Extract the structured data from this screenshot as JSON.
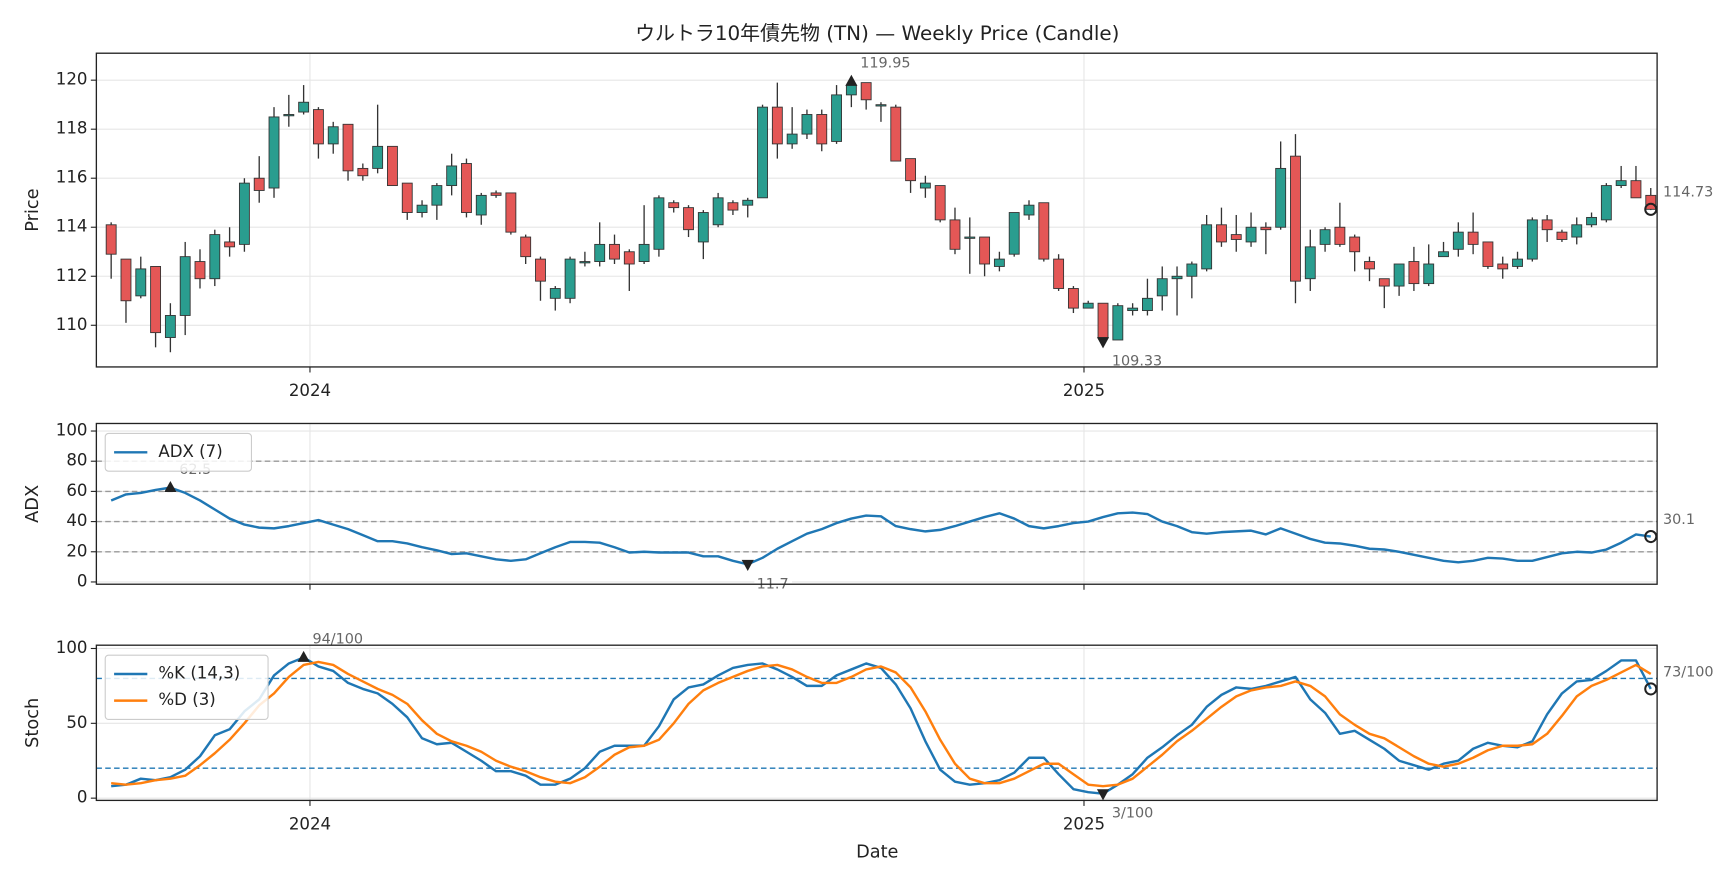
{
  "chart_data": {
    "title": "ウルトラ10年債先物 (TN) — Weekly Price (Candle)",
    "xlabel": "Date",
    "xlim": [
      "2023-09-22",
      "2025-09-29"
    ],
    "xticks": [
      {
        "value": "2024-01-01",
        "label": "2024"
      },
      {
        "value": "2025-01-01",
        "label": "2025"
      }
    ],
    "x": [
      "2023-09-29",
      "2023-10-06",
      "2023-10-13",
      "2023-10-20",
      "2023-10-27",
      "2023-11-03",
      "2023-11-10",
      "2023-11-17",
      "2023-11-24",
      "2023-12-01",
      "2023-12-08",
      "2023-12-15",
      "2023-12-22",
      "2023-12-29",
      "2024-01-05",
      "2024-01-12",
      "2024-01-19",
      "2024-01-26",
      "2024-02-02",
      "2024-02-09",
      "2024-02-16",
      "2024-02-23",
      "2024-03-01",
      "2024-03-08",
      "2024-03-15",
      "2024-03-22",
      "2024-03-29",
      "2024-04-05",
      "2024-04-12",
      "2024-04-19",
      "2024-04-26",
      "2024-05-03",
      "2024-05-10",
      "2024-05-17",
      "2024-05-24",
      "2024-05-31",
      "2024-06-07",
      "2024-06-14",
      "2024-06-21",
      "2024-06-28",
      "2024-07-05",
      "2024-07-12",
      "2024-07-19",
      "2024-07-26",
      "2024-08-02",
      "2024-08-09",
      "2024-08-16",
      "2024-08-23",
      "2024-08-30",
      "2024-09-06",
      "2024-09-13",
      "2024-09-20",
      "2024-09-27",
      "2024-10-04",
      "2024-10-11",
      "2024-10-18",
      "2024-10-25",
      "2024-11-01",
      "2024-11-08",
      "2024-11-15",
      "2024-11-22",
      "2024-11-29",
      "2024-12-06",
      "2024-12-13",
      "2024-12-20",
      "2024-12-27",
      "2025-01-03",
      "2025-01-10",
      "2025-01-17",
      "2025-01-24",
      "2025-01-31",
      "2025-02-07",
      "2025-02-14",
      "2025-02-21",
      "2025-02-28",
      "2025-03-07",
      "2025-03-14",
      "2025-03-21",
      "2025-03-28",
      "2025-04-04",
      "2025-04-11",
      "2025-04-18",
      "2025-04-25",
      "2025-05-02",
      "2025-05-09",
      "2025-05-16",
      "2025-05-23",
      "2025-05-30",
      "2025-06-06",
      "2025-06-13",
      "2025-06-20",
      "2025-06-27",
      "2025-07-04",
      "2025-07-11",
      "2025-07-18",
      "2025-07-25",
      "2025-08-01",
      "2025-08-08",
      "2025-08-15",
      "2025-08-22",
      "2025-08-29",
      "2025-09-05",
      "2025-09-12",
      "2025-09-19",
      "2025-09-26"
    ],
    "panels": [
      {
        "type": "candlestick",
        "ylabel": "Price",
        "ylim": [
          108.3,
          121.1
        ],
        "yticks": [
          110,
          112,
          114,
          116,
          118,
          120
        ],
        "grid": true,
        "show_xtick_labels": true,
        "up_color": "#2a9d8f",
        "down_color": "#e45756",
        "edge_color": "#333333",
        "open": [
          114.1,
          112.7,
          111.2,
          112.4,
          109.5,
          110.4,
          112.6,
          111.9,
          113.4,
          113.3,
          116.0,
          115.6,
          118.6,
          118.7,
          118.8,
          117.4,
          118.2,
          116.4,
          116.4,
          117.3,
          115.8,
          114.6,
          114.9,
          115.7,
          116.6,
          114.5,
          115.4,
          115.4,
          113.6,
          112.7,
          111.1,
          111.1,
          112.6,
          112.6,
          113.3,
          113.0,
          112.6,
          113.1,
          115.0,
          114.8,
          113.4,
          114.1,
          115.0,
          114.9,
          115.2,
          118.9,
          117.4,
          117.8,
          118.6,
          117.5,
          119.4,
          119.9,
          119.0,
          118.9,
          116.8,
          115.6,
          115.7,
          114.3,
          113.6,
          113.6,
          112.4,
          112.9,
          114.5,
          115.0,
          112.7,
          111.5,
          110.7,
          110.9,
          109.4,
          110.6,
          110.6,
          111.2,
          111.9,
          112.0,
          112.3,
          114.1,
          113.7,
          113.4,
          114.0,
          114.0,
          116.9,
          111.9,
          113.3,
          114.0,
          113.6,
          112.6,
          111.9,
          111.6,
          112.6,
          111.7,
          112.8,
          113.1,
          113.8,
          113.4,
          112.5,
          112.4,
          112.7,
          114.3,
          113.8,
          113.6,
          114.1,
          114.3,
          115.7,
          115.9,
          115.3
        ],
        "high": [
          114.2,
          112.7,
          112.8,
          112.4,
          110.9,
          113.4,
          113.1,
          113.9,
          114.0,
          116.0,
          116.9,
          118.9,
          119.4,
          119.8,
          118.9,
          118.3,
          118.2,
          116.6,
          119.0,
          117.3,
          115.8,
          115.1,
          115.8,
          117.0,
          116.8,
          115.4,
          115.5,
          115.4,
          113.7,
          112.8,
          111.6,
          112.8,
          113.0,
          114.2,
          113.7,
          113.1,
          114.9,
          115.3,
          115.1,
          114.9,
          114.7,
          115.4,
          115.1,
          115.2,
          119.0,
          119.9,
          118.9,
          118.8,
          118.8,
          119.8,
          119.95,
          119.9,
          119.1,
          119.0,
          116.8,
          116.1,
          115.7,
          114.8,
          114.4,
          113.6,
          113.0,
          114.6,
          115.1,
          115.0,
          112.9,
          111.6,
          111.0,
          110.9,
          110.9,
          110.9,
          111.9,
          112.4,
          112.4,
          112.6,
          114.5,
          114.8,
          114.5,
          114.6,
          114.2,
          117.5,
          117.8,
          113.9,
          114.0,
          115.0,
          113.7,
          112.8,
          111.9,
          112.5,
          113.2,
          113.3,
          113.4,
          114.2,
          114.6,
          113.4,
          112.8,
          113.0,
          114.4,
          114.5,
          113.9,
          114.4,
          114.6,
          115.8,
          116.5,
          116.5,
          115.6
        ],
        "low": [
          111.9,
          110.1,
          111.1,
          109.1,
          108.9,
          109.6,
          111.5,
          111.6,
          112.8,
          113.0,
          115.0,
          115.2,
          118.1,
          118.6,
          116.8,
          117.0,
          115.9,
          115.9,
          116.2,
          115.7,
          114.3,
          114.4,
          114.3,
          115.3,
          114.4,
          114.1,
          115.2,
          113.7,
          112.5,
          111.0,
          110.6,
          110.9,
          112.4,
          112.4,
          112.5,
          111.4,
          112.5,
          112.8,
          114.6,
          113.6,
          112.7,
          114.0,
          114.5,
          114.4,
          115.2,
          116.8,
          117.2,
          117.6,
          117.1,
          117.4,
          118.9,
          118.8,
          118.3,
          116.7,
          115.4,
          115.2,
          114.2,
          112.9,
          112.1,
          112.0,
          112.2,
          112.8,
          114.3,
          112.6,
          111.4,
          110.5,
          110.7,
          109.33,
          109.4,
          110.4,
          110.4,
          110.6,
          110.4,
          111.1,
          112.2,
          113.2,
          113.0,
          113.2,
          112.9,
          113.9,
          110.9,
          111.4,
          113.0,
          113.2,
          112.2,
          111.8,
          110.7,
          111.2,
          111.4,
          111.6,
          112.8,
          112.8,
          112.9,
          112.3,
          111.9,
          112.3,
          112.6,
          113.4,
          113.4,
          113.3,
          114.0,
          114.2,
          115.6,
          115.2,
          114.7
        ],
        "close": [
          112.9,
          111.0,
          112.3,
          109.7,
          110.4,
          112.8,
          111.9,
          113.7,
          113.2,
          115.8,
          115.5,
          118.5,
          118.6,
          119.1,
          117.4,
          118.1,
          116.3,
          116.1,
          117.3,
          115.7,
          114.6,
          114.9,
          115.7,
          116.5,
          114.6,
          115.3,
          115.3,
          113.8,
          112.8,
          111.8,
          111.5,
          112.7,
          112.6,
          113.3,
          112.7,
          112.5,
          113.3,
          115.2,
          114.8,
          113.9,
          114.6,
          115.2,
          114.7,
          115.1,
          118.9,
          117.4,
          117.8,
          118.6,
          117.4,
          119.4,
          119.8,
          119.2,
          119.0,
          116.7,
          115.9,
          115.8,
          114.3,
          113.1,
          113.6,
          112.5,
          112.7,
          114.6,
          114.9,
          112.7,
          111.5,
          110.7,
          110.9,
          109.5,
          110.8,
          110.7,
          111.1,
          111.9,
          112.0,
          112.5,
          114.1,
          113.4,
          113.5,
          114.0,
          113.9,
          116.4,
          111.8,
          113.2,
          113.9,
          113.3,
          113.0,
          112.3,
          111.6,
          112.5,
          111.7,
          112.5,
          113.0,
          113.8,
          113.3,
          112.4,
          112.3,
          112.7,
          114.3,
          113.9,
          113.5,
          114.1,
          114.4,
          115.7,
          115.9,
          115.2,
          114.73
        ],
        "annotations": [
          {
            "text": "119.95",
            "x": "2024-09-13",
            "y": 119.95,
            "marker": "up"
          },
          {
            "text": "109.33",
            "x": "2025-01-10",
            "y": 109.33,
            "marker": "down"
          },
          {
            "text": "114.73",
            "x": "2025-09-26",
            "y": 114.73,
            "marker": "circle"
          }
        ]
      },
      {
        "type": "line",
        "ylabel": "ADX",
        "ylim": [
          -1.5,
          105
        ],
        "yticks": [
          0,
          20,
          40,
          60,
          80,
          100
        ],
        "grid": true,
        "show_xtick_labels": false,
        "hlines": [
          20,
          40,
          60,
          80
        ],
        "hline_color": "#999999",
        "legend": "upper left",
        "series": [
          {
            "name": "ADX (7)",
            "color": "#1f77b4",
            "values": [
              54,
              58,
              59,
              61,
              62.5,
              59,
              54,
              48,
              42,
              38,
              36,
              35.5,
              37,
              39,
              41,
              38,
              35,
              31,
              27,
              27,
              25.5,
              23,
              21,
              18.5,
              19,
              17,
              15,
              14,
              15,
              19,
              23,
              26.5,
              26.5,
              26,
              23,
              19.5,
              20,
              19.5,
              19.5,
              19.5,
              17,
              17,
              14,
              11.7,
              16,
              22,
              27,
              32,
              35,
              39,
              42,
              44,
              43.5,
              37,
              35,
              33.5,
              34.5,
              37,
              40,
              43,
              45.5,
              42,
              37,
              35.5,
              37,
              39,
              40,
              43,
              45.5,
              46,
              45,
              40,
              37,
              33,
              32,
              33,
              33.5,
              34,
              31.5,
              35.5,
              32,
              28.5,
              26,
              25.5,
              24,
              22,
              21.5,
              20,
              18,
              16,
              14,
              13,
              14,
              16,
              15.5,
              14,
              14,
              16.5,
              19,
              20,
              19.5,
              21.5,
              26,
              31.5,
              30.1
            ]
          }
        ],
        "annotations": [
          {
            "text": "62.5",
            "x": "2023-10-27",
            "y": 62.5,
            "marker": "up"
          },
          {
            "text": "11.7",
            "x": "2024-07-26",
            "y": 11.7,
            "marker": "down"
          },
          {
            "text": "30.1",
            "x": "2025-09-26",
            "y": 30.1,
            "marker": "circle"
          }
        ]
      },
      {
        "type": "line",
        "ylabel": "Stoch",
        "ylim": [
          -1.5,
          102.2
        ],
        "yticks": [
          0,
          50,
          100
        ],
        "grid": true,
        "show_xtick_labels": true,
        "hlines": [
          20,
          80
        ],
        "hline_color": "#1f77b4",
        "legend": "upper left",
        "series": [
          {
            "name": "%K (14,3)",
            "color": "#1f77b4",
            "values": [
              8,
              9,
              13,
              12,
              14,
              19,
              28,
              42,
              46,
              58,
              66,
              82,
              90,
              94,
              88,
              85,
              77,
              73,
              70,
              63,
              54,
              40,
              36,
              37,
              31,
              25,
              18,
              18,
              15,
              9,
              9,
              13,
              20,
              31,
              35,
              35,
              35,
              48,
              66,
              74,
              76,
              82,
              87,
              89,
              90,
              86,
              81,
              75,
              75,
              82,
              86,
              90,
              87,
              76,
              60,
              38,
              19,
              11,
              9,
              10,
              12,
              17,
              27,
              27,
              16,
              6,
              4,
              3,
              9,
              16,
              27,
              34,
              42,
              49,
              61,
              69,
              74,
              73,
              75,
              78,
              81,
              66,
              57,
              43,
              45,
              39,
              33,
              25,
              22,
              19,
              23,
              25,
              33,
              37,
              35,
              34,
              38,
              56,
              70,
              78,
              79,
              85,
              92,
              92,
              73
            ]
          },
          {
            "name": "%D (3)",
            "color": "#ff7f0e",
            "values": [
              10,
              9,
              10,
              12,
              13,
              15,
              22,
              30,
              39,
              50,
              62,
              70,
              81,
              89,
              91,
              89,
              83,
              78,
              73,
              69,
              63,
              52,
              43,
              38,
              35,
              31,
              25,
              21,
              18,
              14,
              11,
              10,
              14,
              21,
              29,
              34,
              35,
              39,
              50,
              63,
              72,
              77,
              81,
              85,
              88,
              89,
              86,
              81,
              77,
              77,
              81,
              86,
              88,
              84,
              74,
              58,
              39,
              23,
              13,
              10,
              10,
              13,
              18,
              23,
              23,
              16,
              9,
              8,
              9,
              13,
              21,
              29,
              38,
              45,
              53,
              61,
              68,
              72,
              74,
              75,
              78,
              75,
              68,
              56,
              49,
              43,
              40,
              34,
              28,
              23,
              21,
              23,
              27,
              32,
              35,
              35,
              36,
              43,
              55,
              68,
              75,
              79,
              84,
              89,
              83
            ]
          }
        ],
        "annotations": [
          {
            "text": "94/100",
            "x": "2023-12-29",
            "y": 94,
            "marker": "up"
          },
          {
            "text": "3/100",
            "x": "2025-01-10",
            "y": 3,
            "marker": "down"
          },
          {
            "text": "73/100",
            "x": "2025-09-26",
            "y": 73,
            "marker": "circle"
          }
        ]
      }
    ]
  }
}
